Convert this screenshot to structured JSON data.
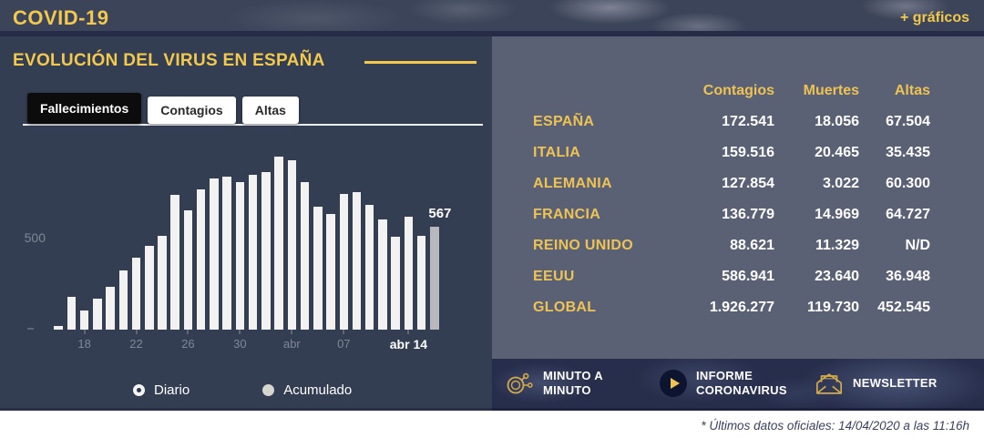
{
  "header": {
    "brand": "COVID-19",
    "graficos_link": "+ gráficos"
  },
  "left_panel": {
    "title": "EVOLUCIÓN DEL VIRUS EN ESPAÑA",
    "tabs": [
      {
        "label": "Fallecimientos",
        "active": true
      },
      {
        "label": "Contagios",
        "active": false
      },
      {
        "label": "Altas",
        "active": false
      }
    ],
    "controls": [
      {
        "label": "Diario",
        "selected": true
      },
      {
        "label": "Acumulado",
        "selected": false
      }
    ]
  },
  "chart_data": {
    "type": "bar",
    "series_name": "Fallecimientos",
    "mode": "Diario",
    "values": [
      21,
      182,
      107,
      169,
      235,
      324,
      394,
      462,
      514,
      738,
      655,
      769,
      832,
      838,
      812,
      849,
      864,
      950,
      932,
      809,
      674,
      637,
      743,
      757,
      683,
      605,
      510,
      619,
      517,
      567
    ],
    "x_tick_labels": [
      {
        "index": 2,
        "label": "18",
        "bold": false
      },
      {
        "index": 6,
        "label": "22",
        "bold": false
      },
      {
        "index": 10,
        "label": "26",
        "bold": false
      },
      {
        "index": 14,
        "label": "30",
        "bold": false
      },
      {
        "index": 18,
        "label": "abr",
        "bold": false
      },
      {
        "index": 22,
        "label": "07",
        "bold": false
      },
      {
        "index": 27,
        "label": "abr 14",
        "bold": true
      }
    ],
    "y_tick_label": "500",
    "ylim": [
      0,
      1090
    ],
    "grid": false,
    "last_value_label": "567",
    "bar_color": "#f2f2f3",
    "last_bar_color": "#b6b8bd"
  },
  "table": {
    "columns": [
      "Contagios",
      "Muertes",
      "Altas"
    ],
    "rows": [
      {
        "country": "ESPAÑA",
        "contagios": "172.541",
        "muertes": "18.056",
        "altas": "67.504"
      },
      {
        "country": "ITALIA",
        "contagios": "159.516",
        "muertes": "20.465",
        "altas": "35.435"
      },
      {
        "country": "ALEMANIA",
        "contagios": "127.854",
        "muertes": "3.022",
        "altas": "60.300"
      },
      {
        "country": "FRANCIA",
        "contagios": "136.779",
        "muertes": "14.969",
        "altas": "64.727"
      },
      {
        "country": "REINO UNIDO",
        "contagios": "88.621",
        "muertes": "11.329",
        "altas": "N/D"
      },
      {
        "country": "EEUU",
        "contagios": "586.941",
        "muertes": "23.640",
        "altas": "36.948"
      },
      {
        "country": "GLOBAL",
        "contagios": "1.926.277",
        "muertes": "119.730",
        "altas": "452.545"
      }
    ]
  },
  "links": [
    {
      "icon": "stopwatch-icon",
      "label": "MINUTO A MINUTO"
    },
    {
      "icon": "play-icon",
      "label": "INFORME CORONAVIRUS"
    },
    {
      "icon": "envelope-icon",
      "label": "NEWSLETTER"
    }
  ],
  "footnote": "* Últimos datos oficiales: 14/04/2020 a las 11:16h",
  "colors": {
    "accent_yellow": "#f2c84e",
    "table_yellow": "#eec355",
    "left_panel_bg": "#343e52",
    "right_panel_bg": "#5a6175",
    "strip_bg": "#272e4c",
    "bar_white": "#f2f2f3",
    "bar_gray": "#b6b8bd"
  }
}
